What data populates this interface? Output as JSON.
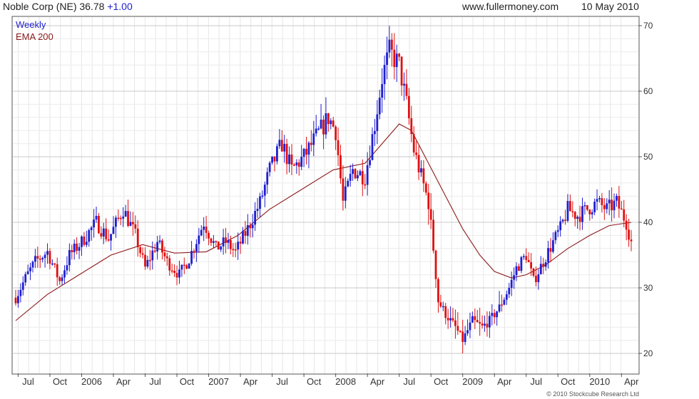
{
  "header": {
    "ticker": "Noble Corp (NE)",
    "price": "36.78",
    "change": "+1.00",
    "site": "www.fullermoney.com",
    "date": "10 May 2010"
  },
  "legend": {
    "interval": "Weekly",
    "ema": "EMA 200"
  },
  "copyright": "© 2010 Stockcube Research Ltd",
  "colors": {
    "up": "#1f1fd0",
    "down": "#e01010",
    "ema": "#8b1a1a",
    "grid": "#d4d4d4",
    "frame": "#555555"
  },
  "chart_data": {
    "type": "line",
    "subtype": "weekly price bars with EMA 200",
    "title": "Noble Corp (NE)",
    "ylim": [
      18,
      72
    ],
    "y_ticks": [
      20,
      30,
      40,
      50,
      60,
      70
    ],
    "y_axis_position": "right",
    "grid": true,
    "x_ticks": [
      {
        "label": "Jul",
        "week": 1
      },
      {
        "label": "Oct",
        "week": 14
      },
      {
        "label": "2006",
        "week": 27
      },
      {
        "label": "Apr",
        "week": 40
      },
      {
        "label": "Jul",
        "week": 53
      },
      {
        "label": "Oct",
        "week": 66
      },
      {
        "label": "2007",
        "week": 79
      },
      {
        "label": "Apr",
        "week": 92
      },
      {
        "label": "Jul",
        "week": 105
      },
      {
        "label": "Oct",
        "week": 118
      },
      {
        "label": "2008",
        "week": 131
      },
      {
        "label": "Apr",
        "week": 144
      },
      {
        "label": "Jul",
        "week": 157
      },
      {
        "label": "Oct",
        "week": 170
      },
      {
        "label": "2009",
        "week": 183
      },
      {
        "label": "Apr",
        "week": 196
      },
      {
        "label": "Jul",
        "week": 209
      },
      {
        "label": "Oct",
        "week": 222
      },
      {
        "label": "2010",
        "week": 235
      },
      {
        "label": "Apr",
        "week": 248
      }
    ],
    "price_anchors": [
      {
        "week": 0,
        "close": 28.5
      },
      {
        "week": 4,
        "close": 31.5
      },
      {
        "week": 8,
        "close": 34
      },
      {
        "week": 13,
        "close": 35.5
      },
      {
        "week": 18,
        "close": 31
      },
      {
        "week": 22,
        "close": 35
      },
      {
        "week": 27,
        "close": 37
      },
      {
        "week": 33,
        "close": 40
      },
      {
        "week": 38,
        "close": 37.5
      },
      {
        "week": 44,
        "close": 42
      },
      {
        "week": 49,
        "close": 38
      },
      {
        "week": 53,
        "close": 33
      },
      {
        "week": 58,
        "close": 37
      },
      {
        "week": 62,
        "close": 34
      },
      {
        "week": 67,
        "close": 32
      },
      {
        "week": 71,
        "close": 34.5
      },
      {
        "week": 77,
        "close": 40
      },
      {
        "week": 82,
        "close": 36
      },
      {
        "week": 86,
        "close": 37
      },
      {
        "week": 90,
        "close": 35.5
      },
      {
        "week": 95,
        "close": 39
      },
      {
        "week": 100,
        "close": 43
      },
      {
        "week": 104,
        "close": 48
      },
      {
        "week": 109,
        "close": 52
      },
      {
        "week": 113,
        "close": 48
      },
      {
        "week": 118,
        "close": 50
      },
      {
        "week": 123,
        "close": 53
      },
      {
        "week": 128,
        "close": 56
      },
      {
        "week": 131,
        "close": 54
      },
      {
        "week": 134,
        "close": 43
      },
      {
        "week": 138,
        "close": 48
      },
      {
        "week": 143,
        "close": 47
      },
      {
        "week": 147,
        "close": 55
      },
      {
        "week": 150,
        "close": 62
      },
      {
        "week": 153,
        "close": 66
      },
      {
        "week": 157,
        "close": 64
      },
      {
        "week": 160,
        "close": 58
      },
      {
        "week": 163,
        "close": 51
      },
      {
        "week": 166,
        "close": 47
      },
      {
        "week": 169,
        "close": 43
      },
      {
        "week": 171,
        "close": 36
      },
      {
        "week": 173,
        "close": 28
      },
      {
        "week": 176,
        "close": 26
      },
      {
        "week": 180,
        "close": 24
      },
      {
        "week": 183,
        "close": 22
      },
      {
        "week": 187,
        "close": 25
      },
      {
        "week": 191,
        "close": 24
      },
      {
        "week": 194,
        "close": 25
      },
      {
        "week": 198,
        "close": 27
      },
      {
        "week": 202,
        "close": 30
      },
      {
        "week": 205,
        "close": 33
      },
      {
        "week": 209,
        "close": 35
      },
      {
        "week": 212,
        "close": 31
      },
      {
        "week": 216,
        "close": 34
      },
      {
        "week": 220,
        "close": 37
      },
      {
        "week": 223,
        "close": 39
      },
      {
        "week": 226,
        "close": 42
      },
      {
        "week": 230,
        "close": 41
      },
      {
        "week": 234,
        "close": 42
      },
      {
        "week": 238,
        "close": 43
      },
      {
        "week": 242,
        "close": 42
      },
      {
        "week": 246,
        "close": 43
      },
      {
        "week": 250,
        "close": 40
      },
      {
        "week": 252,
        "close": 37
      }
    ],
    "ema_200": [
      {
        "week": 0,
        "value": 25
      },
      {
        "week": 13,
        "value": 29
      },
      {
        "week": 26,
        "value": 32
      },
      {
        "week": 39,
        "value": 35
      },
      {
        "week": 52,
        "value": 36.6
      },
      {
        "week": 65,
        "value": 35.3
      },
      {
        "week": 78,
        "value": 35.5
      },
      {
        "week": 91,
        "value": 38
      },
      {
        "week": 104,
        "value": 42
      },
      {
        "week": 117,
        "value": 45
      },
      {
        "week": 130,
        "value": 48
      },
      {
        "week": 143,
        "value": 49
      },
      {
        "week": 150,
        "value": 52
      },
      {
        "week": 157,
        "value": 55
      },
      {
        "week": 162,
        "value": 54
      },
      {
        "week": 169,
        "value": 49
      },
      {
        "week": 176,
        "value": 44
      },
      {
        "week": 183,
        "value": 39
      },
      {
        "week": 190,
        "value": 35
      },
      {
        "week": 196,
        "value": 32.5
      },
      {
        "week": 203,
        "value": 31.5
      },
      {
        "week": 209,
        "value": 32
      },
      {
        "week": 217,
        "value": 33.5
      },
      {
        "week": 226,
        "value": 36
      },
      {
        "week": 235,
        "value": 38
      },
      {
        "week": 243,
        "value": 39.5
      },
      {
        "week": 252,
        "value": 40
      }
    ]
  }
}
